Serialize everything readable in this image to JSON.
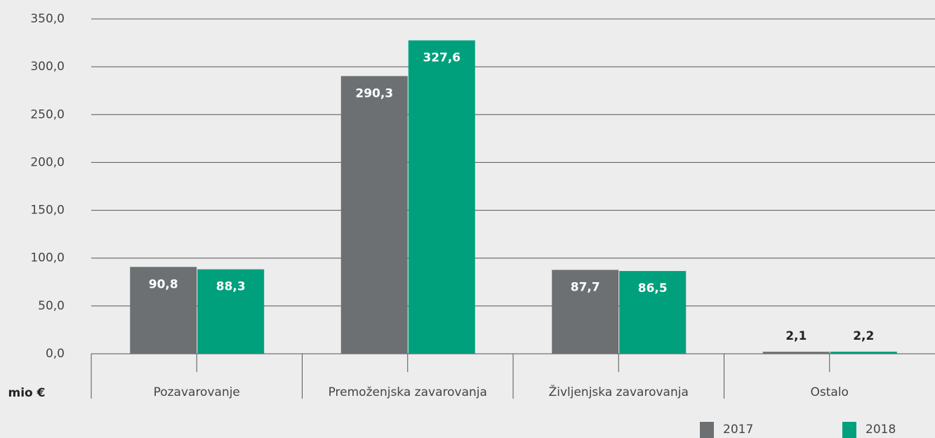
{
  "chart_data": {
    "type": "bar",
    "ylabel": "mio €",
    "categories": [
      "Pozavarovanje",
      "Premoženjska zavarovanja",
      "Življenjska zavarovanja",
      "Ostalo"
    ],
    "series": [
      {
        "name": "2017",
        "color": "#6d7072",
        "values": [
          90.8,
          290.3,
          87.7,
          2.1
        ],
        "value_labels": [
          "90,8",
          "290,3",
          "87,7",
          "2,1"
        ]
      },
      {
        "name": "2018",
        "color": "#00a07c",
        "values": [
          88.3,
          327.6,
          86.5,
          2.2
        ],
        "value_labels": [
          "88,3",
          "327,6",
          "86,5",
          "2,2"
        ]
      }
    ],
    "ylim": [
      0,
      350
    ],
    "yticks": [
      {
        "value": 0,
        "label": "0,0"
      },
      {
        "value": 50,
        "label": "50,0"
      },
      {
        "value": 100,
        "label": "100,0"
      },
      {
        "value": 150,
        "label": "150,0"
      },
      {
        "value": 200,
        "label": "200,0"
      },
      {
        "value": 250,
        "label": "250,0"
      },
      {
        "value": 300,
        "label": "300,0"
      },
      {
        "value": 350,
        "label": "350,0"
      }
    ],
    "grid": true,
    "legend": "bottom-right"
  }
}
